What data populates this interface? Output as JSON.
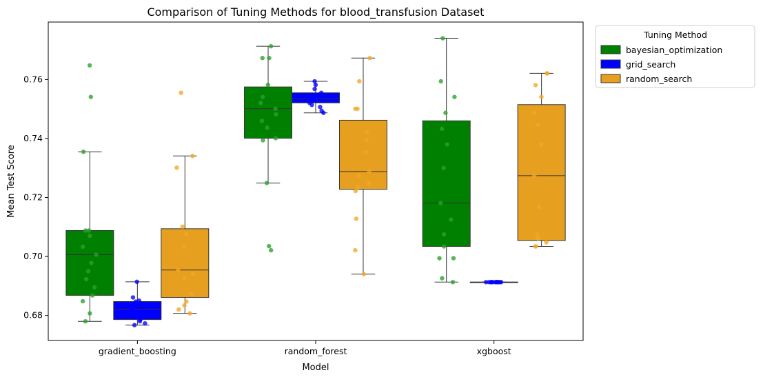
{
  "chart_data": {
    "type": "box",
    "title": "Comparison of Tuning Methods for blood_transfusion Dataset",
    "xlabel": "Model",
    "ylabel": "Mean Test Score",
    "categories": [
      "gradient_boosting",
      "random_forest",
      "xgboost"
    ],
    "ylim": [
      0.6715,
      0.7795
    ],
    "yticks": [
      0.68,
      0.7,
      0.72,
      0.74,
      0.76
    ],
    "ytick_labels": [
      "0.68",
      "0.70",
      "0.72",
      "0.74",
      "0.76"
    ],
    "grid": false,
    "legend": {
      "title": "Tuning Method",
      "placement": "outside-upper-right",
      "entries": [
        "bayesian_optimization",
        "grid_search",
        "random_search"
      ]
    },
    "series": [
      {
        "name": "bayesian_optimization",
        "color": "#008000",
        "point_color": "#2ca02c",
        "boxes": [
          {
            "whisker_low": 0.678,
            "q1": 0.6868,
            "median": 0.7006,
            "q3": 0.7088,
            "whisker_high": 0.7355
          },
          {
            "whisker_low": 0.7249,
            "q1": 0.7401,
            "median": 0.7501,
            "q3": 0.7575,
            "whisker_high": 0.7713
          },
          {
            "whisker_low": 0.6913,
            "q1": 0.7034,
            "median": 0.7181,
            "q3": 0.746,
            "whisker_high": 0.774
          }
        ],
        "points": [
          [
            0.7648,
            0.7541,
            0.7355,
            0.7088,
            0.7088,
            0.707,
            0.7033,
            0.7006,
            0.6978,
            0.695,
            0.6923,
            0.6895,
            0.6868,
            0.6848,
            0.6807,
            0.678
          ],
          [
            0.7713,
            0.7673,
            0.7673,
            0.7582,
            0.7541,
            0.7521,
            0.7501,
            0.7482,
            0.746,
            0.7437,
            0.7401,
            0.7394,
            0.7249,
            0.7035,
            0.7021
          ],
          [
            0.774,
            0.7594,
            0.7541,
            0.7487,
            0.7433,
            0.738,
            0.73,
            0.7181,
            0.7125,
            0.7075,
            0.7034,
            0.6994,
            0.6994,
            0.6926,
            0.6913
          ]
        ]
      },
      {
        "name": "grid_search",
        "color": "#0000ff",
        "point_color": "#0000ff",
        "boxes": [
          {
            "whisker_low": 0.6767,
            "q1": 0.6786,
            "median": 0.6821,
            "q3": 0.6847,
            "whisker_high": 0.6914
          },
          {
            "whisker_low": 0.7487,
            "q1": 0.7521,
            "median": 0.7535,
            "q3": 0.7555,
            "whisker_high": 0.7594
          },
          {
            "whisker_low": 0.6913,
            "q1": 0.6913,
            "median": 0.6913,
            "q3": 0.6913,
            "whisker_high": 0.6913
          }
        ],
        "points": [
          [
            0.6914,
            0.6861,
            0.685,
            0.6847,
            0.684,
            0.6834,
            0.6827,
            0.6821,
            0.6814,
            0.6807,
            0.68,
            0.6793,
            0.6786,
            0.678,
            0.6773,
            0.6767
          ],
          [
            0.7594,
            0.7582,
            0.7568,
            0.7555,
            0.7548,
            0.7541,
            0.7535,
            0.7535,
            0.7528,
            0.7521,
            0.7514,
            0.7507,
            0.7494,
            0.7487
          ],
          [
            0.6913,
            0.6913,
            0.6913,
            0.6913,
            0.6913,
            0.6913,
            0.6913,
            0.6913,
            0.6913,
            0.6913,
            0.6913,
            0.6913
          ]
        ]
      },
      {
        "name": "random_search",
        "color": "#e69f1f",
        "point_color": "#f5a623",
        "boxes": [
          {
            "whisker_low": 0.6807,
            "q1": 0.6861,
            "median": 0.6954,
            "q3": 0.7094,
            "whisker_high": 0.7341
          },
          {
            "whisker_low": 0.694,
            "q1": 0.7228,
            "median": 0.7288,
            "q3": 0.7462,
            "whisker_high": 0.7673
          },
          {
            "whisker_low": 0.7034,
            "q1": 0.7054,
            "median": 0.7274,
            "q3": 0.7515,
            "whisker_high": 0.7621
          }
        ],
        "points": [
          [
            0.7555,
            0.7341,
            0.7301,
            0.7101,
            0.7075,
            0.7034,
            0.6954,
            0.694,
            0.6927,
            0.6874,
            0.6847,
            0.6834,
            0.682,
            0.6807
          ],
          [
            0.7673,
            0.7594,
            0.7501,
            0.7501,
            0.7421,
            0.7395,
            0.7354,
            0.7288,
            0.7274,
            0.7248,
            0.7235,
            0.7222,
            0.7128,
            0.7021,
            0.694
          ],
          [
            0.7621,
            0.7621,
            0.7581,
            0.7541,
            0.7487,
            0.7447,
            0.738,
            0.7274,
            0.7167,
            0.7074,
            0.7061,
            0.7048,
            0.7034,
            0.7034
          ]
        ]
      }
    ]
  }
}
